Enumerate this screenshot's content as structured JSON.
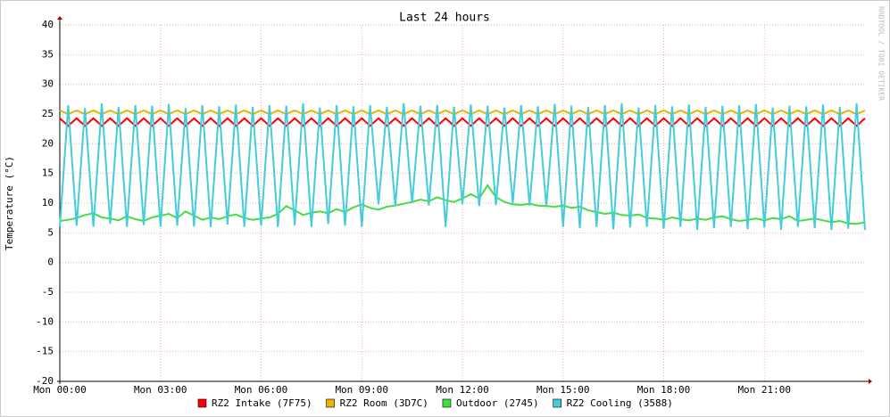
{
  "chart_data": {
    "type": "line",
    "title": "Last 24 hours",
    "y_label": "Temperature (°C)",
    "side_note": "RRDTOOL / TOBI OETIKER",
    "xlim": [
      0,
      24
    ],
    "ylim": [
      -20,
      40
    ],
    "yticks": [
      -20,
      -15,
      -10,
      -5,
      0,
      5,
      10,
      15,
      20,
      25,
      30,
      35,
      40
    ],
    "xticks": [
      {
        "value": 0,
        "label": "Mon 00:00"
      },
      {
        "value": 3,
        "label": "Mon 03:00"
      },
      {
        "value": 6,
        "label": "Mon 06:00"
      },
      {
        "value": 9,
        "label": "Mon 09:00"
      },
      {
        "value": 12,
        "label": "Mon 12:00"
      },
      {
        "value": 15,
        "label": "Mon 15:00"
      },
      {
        "value": 18,
        "label": "Mon 18:00"
      },
      {
        "value": 21,
        "label": "Mon 21:00"
      }
    ],
    "grid": true,
    "x": [
      0,
      0.25,
      0.5,
      0.75,
      1,
      1.25,
      1.5,
      1.75,
      2,
      2.25,
      2.5,
      2.75,
      3,
      3.25,
      3.5,
      3.75,
      4,
      4.25,
      4.5,
      4.75,
      5,
      5.25,
      5.5,
      5.75,
      6,
      6.25,
      6.5,
      6.75,
      7,
      7.25,
      7.5,
      7.75,
      8,
      8.25,
      8.5,
      8.75,
      9,
      9.25,
      9.5,
      9.75,
      10,
      10.25,
      10.5,
      10.75,
      11,
      11.25,
      11.5,
      11.75,
      12,
      12.25,
      12.5,
      12.75,
      13,
      13.25,
      13.5,
      13.75,
      14,
      14.25,
      14.5,
      14.75,
      15,
      15.25,
      15.5,
      15.75,
      16,
      16.25,
      16.5,
      16.75,
      17,
      17.25,
      17.5,
      17.75,
      18,
      18.25,
      18.5,
      18.75,
      19,
      19.25,
      19.5,
      19.75,
      20,
      20.25,
      20.5,
      20.75,
      21,
      21.25,
      21.5,
      21.75,
      22,
      22.25,
      22.5,
      22.75,
      23,
      23.25,
      23.5,
      23.75,
      24
    ],
    "series": [
      {
        "name": "RZ2 Intake (7F75)",
        "color": "#ff0000",
        "values": [
          24.3,
          23,
          24.3,
          23,
          24.3,
          23,
          24.3,
          23,
          24.3,
          23,
          24.3,
          23,
          24.3,
          23,
          24.3,
          23,
          24.3,
          23,
          24.3,
          23,
          24.3,
          23,
          24.3,
          23,
          24.3,
          23,
          24.3,
          23,
          24.3,
          23,
          24.3,
          23,
          24.3,
          23,
          24.3,
          23,
          24.3,
          23,
          24.3,
          23,
          24.3,
          23,
          24.3,
          23,
          24.3,
          23,
          24.3,
          23,
          24.3,
          23,
          24.3,
          23,
          24.3,
          23,
          24.3,
          23,
          24.3,
          23,
          24.3,
          23,
          24.3,
          23,
          24.3,
          23,
          24.3,
          23,
          24.3,
          23,
          24.3,
          23,
          24.3,
          23,
          24.3,
          23,
          24.3,
          23,
          24.3,
          23,
          24.3,
          23,
          24.3,
          23,
          24.3,
          23,
          24.3,
          23,
          24.3,
          23,
          24.3,
          23,
          24.3,
          23,
          24.3,
          23,
          24.3,
          23,
          24.3
        ]
      },
      {
        "name": "RZ2 Room (3D7C)",
        "color": "#e8b400",
        "values": [
          25.6,
          25,
          25.6,
          25,
          25.6,
          25,
          25.6,
          25,
          25.6,
          25,
          25.6,
          25,
          25.6,
          25,
          25.6,
          25,
          25.6,
          25,
          25.6,
          25,
          25.6,
          25,
          25.6,
          25,
          25.6,
          25,
          25.6,
          25,
          25.6,
          25,
          25.6,
          25,
          25.6,
          25,
          25.6,
          25,
          25.6,
          25,
          25.6,
          25,
          25.6,
          25,
          25.6,
          25,
          25.6,
          25,
          25.6,
          25,
          25.6,
          25,
          25.6,
          25,
          25.6,
          25,
          25.6,
          25,
          25.6,
          25,
          25.6,
          25,
          25.6,
          25,
          25.6,
          25,
          25.6,
          25,
          25.6,
          25,
          25.6,
          25,
          25.6,
          25,
          25.6,
          25,
          25.6,
          25,
          25.6,
          25,
          25.6,
          25,
          25.6,
          25,
          25.6,
          25,
          25.6,
          25,
          25.6,
          25,
          25.6,
          25,
          25.6,
          25,
          25.6,
          25,
          25.6,
          25,
          25.6
        ]
      },
      {
        "name": "Outdoor (2745)",
        "color": "#44dd44",
        "values": [
          7,
          7.2,
          7.5,
          8,
          8.3,
          7.6,
          7.4,
          7.1,
          7.8,
          7.3,
          7,
          7.6,
          7.9,
          8.2,
          7.5,
          8.6,
          7.9,
          7.2,
          7.6,
          7.3,
          7.8,
          8.1,
          7.5,
          7.2,
          7.4,
          7.6,
          8.2,
          9.5,
          8.8,
          8,
          8.4,
          8.6,
          8.3,
          9,
          8.5,
          9.3,
          9.8,
          9.2,
          8.9,
          9.4,
          9.6,
          9.9,
          10.2,
          10.6,
          10.3,
          11,
          10.5,
          10.2,
          10.8,
          11.5,
          10.8,
          13,
          11,
          10.2,
          9.8,
          9.7,
          9.9,
          9.6,
          9.5,
          9.4,
          9.6,
          9.2,
          9.4,
          8.8,
          8.5,
          8.2,
          8.4,
          8,
          7.9,
          8.1,
          7.5,
          7.4,
          7.2,
          7.6,
          7.3,
          7.1,
          7.4,
          7.2,
          7.6,
          7.8,
          7.3,
          7,
          7.2,
          7.4,
          7.1,
          7.5,
          7.3,
          7.8,
          7,
          7.2,
          7.4,
          7.1,
          6.8,
          7,
          6.6,
          6.5,
          6.8
        ]
      },
      {
        "name": "RZ2 Cooling (3588)",
        "color": "#44ccdd",
        "values": [
          6,
          26.5,
          6.2,
          26,
          6,
          26.8,
          6.5,
          26.2,
          6,
          26.5,
          6.3,
          26.4,
          6,
          26.7,
          6.2,
          26,
          6.1,
          26.5,
          6,
          26.3,
          6.4,
          26.6,
          6,
          26.2,
          6.2,
          26.5,
          6,
          26.4,
          6.3,
          26.8,
          6,
          26.1,
          6.5,
          26.5,
          6.2,
          26.3,
          6,
          26.5,
          9.8,
          26.2,
          9.5,
          26.8,
          10,
          26.4,
          9.6,
          26.5,
          6,
          26.2,
          9.8,
          26.6,
          9.5,
          26.4,
          9.7,
          26.1,
          10,
          26.5,
          9.6,
          26.3,
          9.5,
          26.7,
          6,
          26.4,
          5.8,
          26.2,
          6,
          26.5,
          5.6,
          26.8,
          5.9,
          26.1,
          6,
          26.5,
          5.7,
          26.3,
          6,
          26.6,
          5.5,
          26.2,
          5.8,
          26.4,
          6,
          26.5,
          5.6,
          26.7,
          5.9,
          26.1,
          5.5,
          26.4,
          6,
          26.3,
          5.8,
          26.6,
          5.5,
          26.2,
          5.7,
          26.8,
          5.5
        ]
      }
    ]
  }
}
